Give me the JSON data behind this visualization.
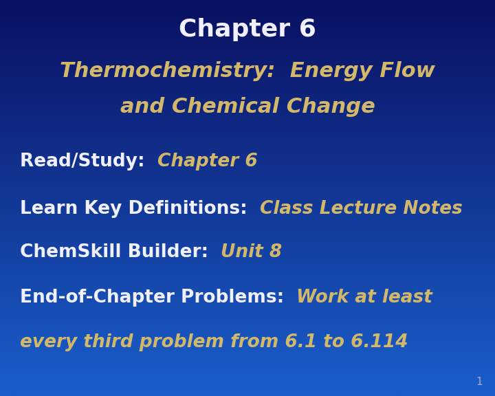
{
  "title": "Chapter 6",
  "subtitle_line1": "Thermochemistry:  Energy Flow",
  "subtitle_line2": "and Chemical Change",
  "items": [
    {
      "label": "Read/Study:  ",
      "value": "Chapter 6"
    },
    {
      "label": "Learn Key Definitions:  ",
      "value": "Class Lecture Notes"
    },
    {
      "label": "ChemSkill Builder:  ",
      "value": "Unit 8"
    },
    {
      "label": "End-of-Chapter Problems:  ",
      "value": "Work at least",
      "value2": "every third problem from 6.1 to 6.114"
    }
  ],
  "bg_color_top": "#0a1060",
  "bg_color_bottom": "#1a5fcc",
  "title_color": "#f0f0ff",
  "subtitle_color": "#d4b86a",
  "label_color": "#f0f0ff",
  "value_color": "#d4b86a",
  "page_number": "1",
  "page_number_color": "#aaaacc",
  "title_fontsize": 26,
  "subtitle_fontsize": 22,
  "item_fontsize": 19
}
